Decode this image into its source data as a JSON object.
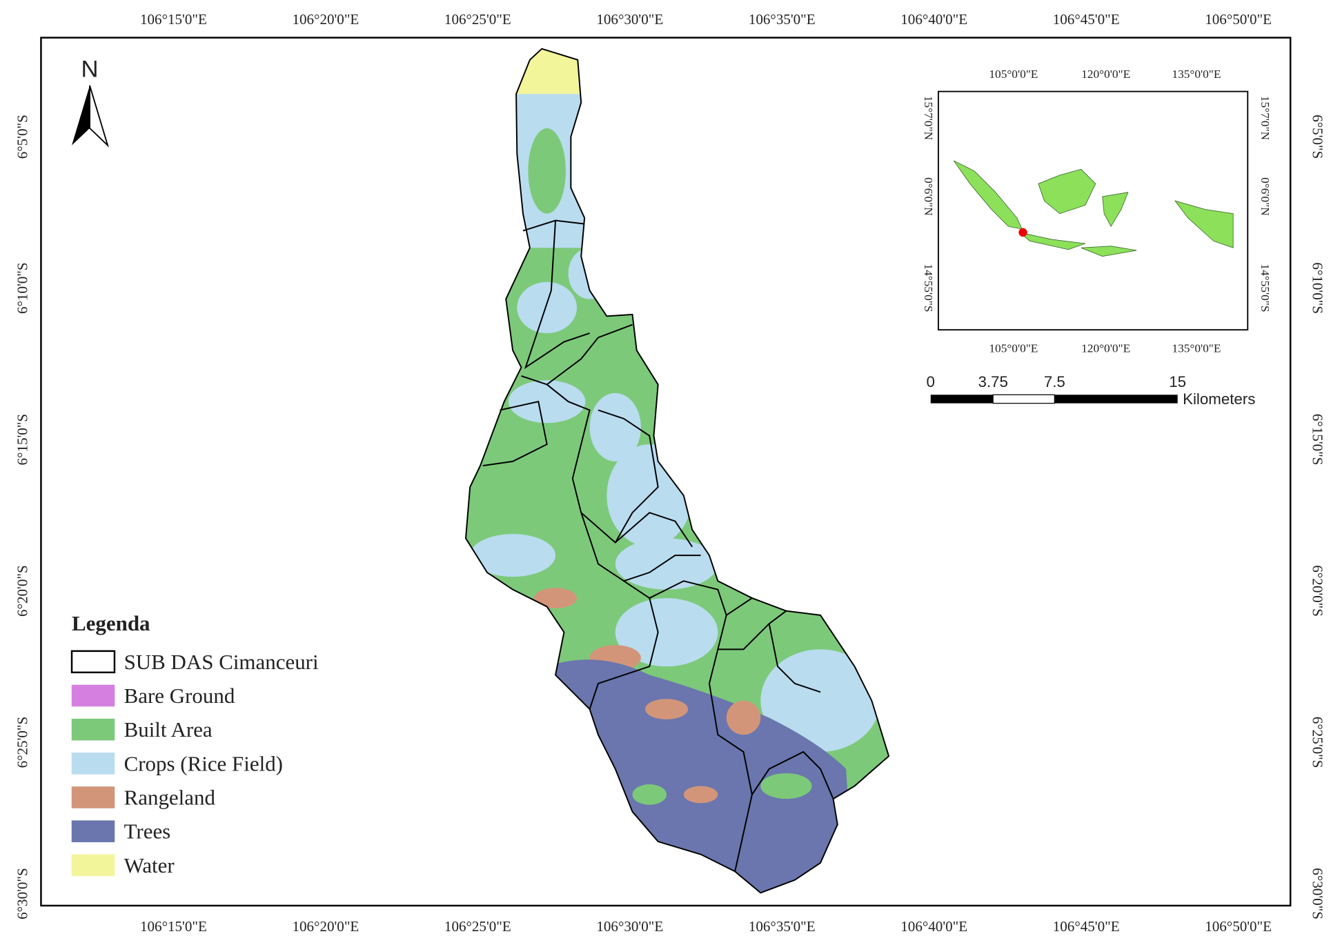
{
  "map": {
    "longitudes": [
      "106°15'0\"E",
      "106°20'0\"E",
      "106°25'0\"E",
      "106°30'0\"E",
      "106°35'0\"E",
      "106°40'0\"E",
      "106°45'0\"E",
      "106°50'0\"E"
    ],
    "latitudes": [
      "6°5'0\"S",
      "6°10'0\"S",
      "6°15'0\"S",
      "6°20'0\"S",
      "6°25'0\"S",
      "6°30'0\"S"
    ],
    "north": "N",
    "legend": {
      "title": "Legenda",
      "items": [
        {
          "label": "SUB DAS Cimanceuri",
          "color": "#ffffff"
        },
        {
          "label": "Bare Ground",
          "color": "#d580e0"
        },
        {
          "label": "Built  Area",
          "color": "#7dc97a"
        },
        {
          "label": "Crops (Rice Field)",
          "color": "#b9dcef"
        },
        {
          "label": "Rangeland",
          "color": "#d3957a"
        },
        {
          "label": "Trees",
          "color": "#6a76ad"
        },
        {
          "label": "Water",
          "color": "#f3f59b"
        }
      ]
    },
    "inset": {
      "longitudes": [
        "105°0'0\"E",
        "120°0'0\"E",
        "135°0'0\"E"
      ],
      "latitudes": [
        "15°7'0\"N",
        "0°6'0\"N",
        "14°55'0\"S"
      ]
    },
    "scale_bar": {
      "labels": [
        "0",
        "3.75",
        "7.5",
        "15"
      ],
      "unit": "Kilometers"
    }
  }
}
